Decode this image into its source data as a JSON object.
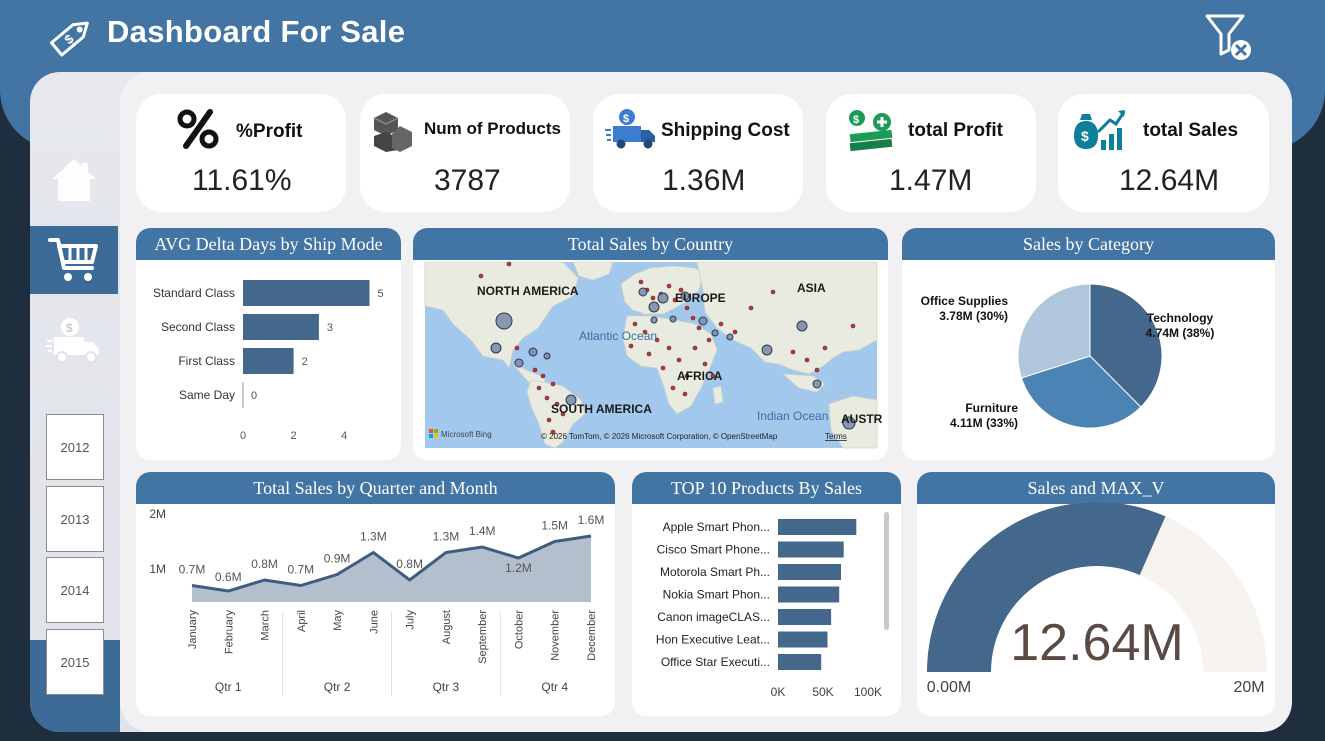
{
  "header": {
    "title": "Dashboard For Sale"
  },
  "sidebar": {
    "years": [
      "2012",
      "2013",
      "2014",
      "2015"
    ]
  },
  "kpis": [
    {
      "label": "%Profit",
      "value": "11.61%",
      "icon": "percent-icon"
    },
    {
      "label": "Num of Products",
      "value": "3787",
      "icon": "boxes-icon"
    },
    {
      "label": "Shipping Cost",
      "value": "1.36M",
      "icon": "delivery-truck-icon"
    },
    {
      "label": "total Profit",
      "value": "1.47M",
      "icon": "money-stack-icon"
    },
    {
      "label": "total Sales",
      "value": "12.64M",
      "icon": "money-bag-growth-icon"
    }
  ],
  "ship_mode": {
    "title": "AVG Delta Days by Ship Mode",
    "chart_data": {
      "type": "bar",
      "orientation": "horizontal",
      "categories": [
        "Standard Class",
        "Second Class",
        "First Class",
        "Same Day"
      ],
      "values": [
        5,
        3,
        2,
        0
      ],
      "xticks": [
        "0",
        "2",
        "4"
      ],
      "xlim": [
        0,
        5.2
      ],
      "color": "#44678c"
    }
  },
  "map": {
    "title": "Total Sales by Country",
    "continents": [
      "NORTH AMERICA",
      "EUROPE",
      "ASIA",
      "AFRICA",
      "SOUTH AMERICA",
      "AUSTR"
    ],
    "oceans": [
      "Atlantic Ocean",
      "Indian Ocean"
    ],
    "bing": "Microsoft Bing",
    "copyright": "© 2026 TomTom, © 2026 Microsoft Corporation, © OpenStreetMap",
    "terms": "Terms"
  },
  "category": {
    "title": "Sales by Category",
    "chart_data": {
      "type": "pie",
      "labels": [
        "Technology",
        "Furniture",
        "Office Supplies"
      ],
      "values": [
        4.74,
        4.11,
        3.78
      ],
      "data_labels": [
        "4.74M (38%)",
        "4.11M (33%)",
        "3.78M (30%)"
      ],
      "colors": [
        "#44678c",
        "#4b83b4",
        "#b0c6dc"
      ]
    }
  },
  "quarter_month": {
    "title": "Total Sales by Quarter and Month",
    "chart_data": {
      "type": "area",
      "x": [
        "January",
        "February",
        "March",
        "April",
        "May",
        "June",
        "July",
        "August",
        "September",
        "October",
        "November",
        "December"
      ],
      "values": [
        0.7,
        0.6,
        0.8,
        0.7,
        0.9,
        1.3,
        0.8,
        1.3,
        1.4,
        1.2,
        1.5,
        1.6
      ],
      "data_labels": [
        "0.7M",
        "0.6M",
        "0.8M",
        "0.7M",
        "0.9M",
        "1.3M",
        "0.8M",
        "1.3M",
        "1.4M",
        "1.2M",
        "1.5M",
        "1.6M"
      ],
      "quarters": [
        "Qtr 1",
        "Qtr 2",
        "Qtr 3",
        "Qtr 4"
      ],
      "yticks": [
        "1M",
        "2M"
      ],
      "ylim": [
        0.4,
        2.0
      ]
    }
  },
  "top_products": {
    "title": "TOP 10 Products By Sales",
    "chart_data": {
      "type": "bar",
      "orientation": "horizontal",
      "categories": [
        "Apple Smart Phon...",
        "Cisco Smart Phone...",
        "Motorola Smart Ph...",
        "Nokia Smart Phon...",
        "Canon imageCLAS...",
        "Hon Executive Leat...",
        "Office Star Executi..."
      ],
      "values": [
        87000,
        73000,
        70000,
        68000,
        59000,
        55000,
        48000
      ],
      "xticks": [
        "0K",
        "50K",
        "100K"
      ],
      "xlim": [
        0,
        100000
      ],
      "color": "#44678c"
    }
  },
  "gauge": {
    "title": "Sales and MAX_V",
    "value_label": "12.64M",
    "value": 12.64,
    "min_label": "0.00M",
    "max_label": "20M",
    "min": 0,
    "max": 20
  }
}
